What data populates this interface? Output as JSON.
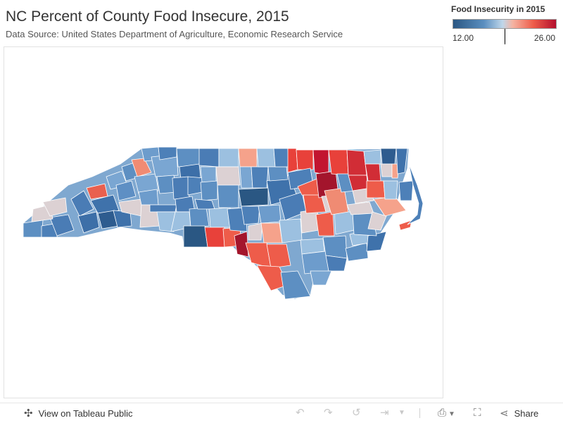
{
  "title": "NC Percent of County Food Insecure, 2015",
  "subtitle": "Data Source: United States Department of Agriculture, Economic Research Service",
  "legend": {
    "title": "Food Insecurity in 2015",
    "min_label": "12.00",
    "max_label": "26.00",
    "colors": {
      "low": "#2a5783",
      "mid": "#e3d8d8",
      "high": "#b40f2d"
    }
  },
  "footer": {
    "view_label": "View on Tableau Public",
    "share_label": "Share",
    "icons": [
      "tableau-logo-icon",
      "undo-icon",
      "redo-icon",
      "revert-icon",
      "pause-icon",
      "download-icon",
      "fullscreen-icon",
      "share-icon"
    ]
  }
}
